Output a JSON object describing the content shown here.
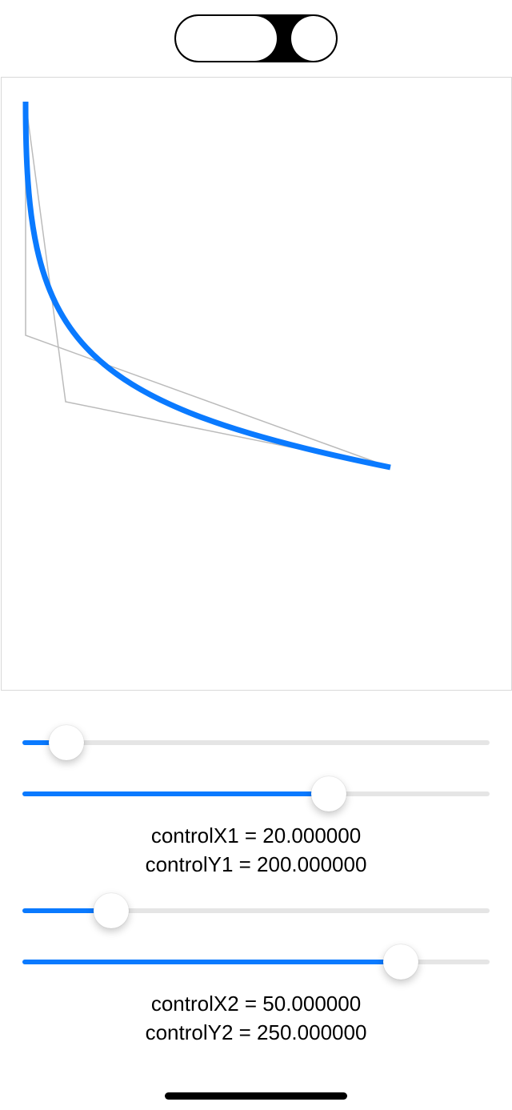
{
  "segmented_control": {
    "selected_index": 1,
    "segments": [
      "",
      ""
    ]
  },
  "curve": {
    "start": {
      "x": 30,
      "y": 30
    },
    "control1": {
      "x": 30,
      "y": 322
    },
    "control2": {
      "x": 80,
      "y": 405
    },
    "end": {
      "x": 486,
      "y": 487
    },
    "curve_color": "#0a7aff",
    "guide_color": "#bbbbbb"
  },
  "sliders": {
    "controlX1": {
      "fraction": 0.095
    },
    "controlY1": {
      "fraction": 0.655
    },
    "controlX2": {
      "fraction": 0.19
    },
    "controlY2": {
      "fraction": 0.81
    }
  },
  "labels": {
    "control_x1": "controlX1 = 20.000000",
    "control_y1": "controlY1 = 200.000000",
    "control_x2": "controlX2 = 50.000000",
    "control_y2": "controlY2 = 250.000000"
  },
  "colors": {
    "accent": "#0a7aff",
    "track": "#e5e5e5"
  }
}
